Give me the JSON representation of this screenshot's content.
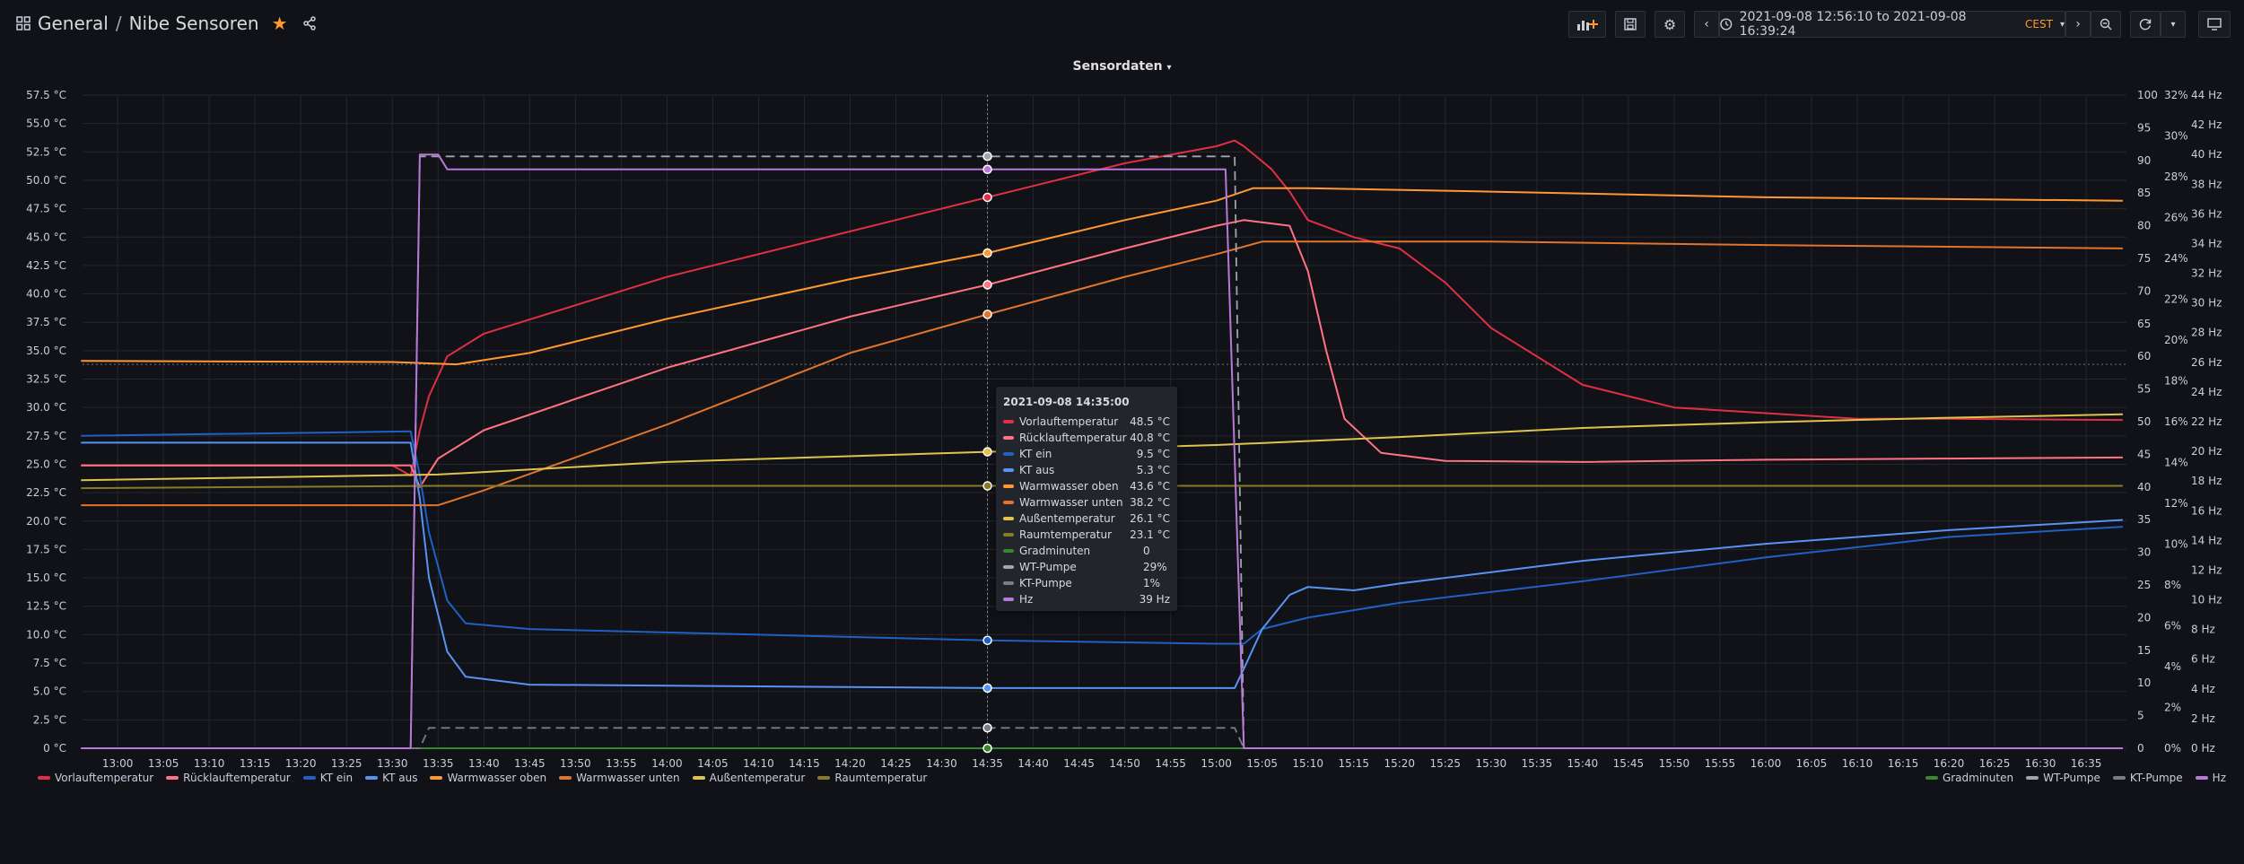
{
  "breadcrumb": {
    "folder": "General",
    "separator": "/",
    "dashboard": "Nibe Sensoren"
  },
  "toolbar": {
    "time_range": "2021-09-08 12:56:10 to 2021-09-08 16:39:24",
    "timezone": "CEST",
    "icons": [
      "add-panel-icon",
      "save-icon",
      "gear-icon",
      "chevron-left-icon",
      "clock-icon",
      "chevron-right-icon",
      "zoom-out-icon",
      "refresh-icon",
      "chevron-down-icon",
      "tv-icon"
    ]
  },
  "panel": {
    "title": "Sensordaten"
  },
  "tooltip": {
    "time": "2021-09-08 14:35:00",
    "rows": [
      {
        "name": "Vorlauftemperatur",
        "value": "48.5 °C",
        "color": "#e02f44"
      },
      {
        "name": "Rücklauftemperatur",
        "value": "40.8 °C",
        "color": "#ff7383"
      },
      {
        "name": "KT ein",
        "value": "9.5 °C",
        "color": "#1f60c4"
      },
      {
        "name": "KT aus",
        "value": "5.3 °C",
        "color": "#5794f2"
      },
      {
        "name": "Warmwasser oben",
        "value": "43.6 °C",
        "color": "#ff9830"
      },
      {
        "name": "Warmwasser unten",
        "value": "38.2 °C",
        "color": "#e0752d"
      },
      {
        "name": "Außentemperatur",
        "value": "26.1 °C",
        "color": "#e0c34d"
      },
      {
        "name": "Raumtemperatur",
        "value": "23.1 °C",
        "color": "#8a7a27"
      },
      {
        "name": "Gradminuten",
        "value": "0",
        "color": "#37872d"
      },
      {
        "name": "WT-Pumpe",
        "value": "29%",
        "color": "#a0a4ae"
      },
      {
        "name": "KT-Pumpe",
        "value": "1%",
        "color": "#7a7d84"
      },
      {
        "name": "Hz",
        "value": "39 Hz",
        "color": "#b877d9"
      }
    ]
  },
  "legend_left": [
    {
      "name": "Vorlauftemperatur",
      "color": "#e02f44"
    },
    {
      "name": "Rücklauftemperatur",
      "color": "#ff7383"
    },
    {
      "name": "KT ein",
      "color": "#1f60c4"
    },
    {
      "name": "KT aus",
      "color": "#5794f2"
    },
    {
      "name": "Warmwasser oben",
      "color": "#ff9830"
    },
    {
      "name": "Warmwasser unten",
      "color": "#e0752d"
    },
    {
      "name": "Außentemperatur",
      "color": "#e0c34d"
    },
    {
      "name": "Raumtemperatur",
      "color": "#8a7a27"
    }
  ],
  "legend_right": [
    {
      "name": "Gradminuten",
      "color": "#37872d"
    },
    {
      "name": "WT-Pumpe",
      "color": "#a0a4ae"
    },
    {
      "name": "KT-Pumpe",
      "color": "#7a7d84"
    },
    {
      "name": "Hz",
      "color": "#b877d9"
    }
  ],
  "chart_data": {
    "type": "line",
    "title": "Sensordaten",
    "x_ticks": [
      "13:00",
      "13:05",
      "13:10",
      "13:15",
      "13:20",
      "13:25",
      "13:30",
      "13:35",
      "13:40",
      "13:45",
      "13:50",
      "13:55",
      "14:00",
      "14:05",
      "14:10",
      "14:15",
      "14:20",
      "14:25",
      "14:30",
      "14:35",
      "14:40",
      "14:45",
      "14:50",
      "14:55",
      "15:00",
      "15:05",
      "15:10",
      "15:15",
      "15:20",
      "15:25",
      "15:30",
      "15:35",
      "15:40",
      "15:45",
      "15:50",
      "15:55",
      "16:00",
      "16:05",
      "16:10",
      "16:15",
      "16:20",
      "16:25",
      "16:30",
      "16:35"
    ],
    "x_range": [
      "12:56:10",
      "16:39:24"
    ],
    "y_axis_left": {
      "unit": "°C",
      "range": [
        0,
        57.5
      ],
      "ticks": [
        "0 °C",
        "2.5 °C",
        "5.0 °C",
        "7.5 °C",
        "10.0 °C",
        "12.5 °C",
        "15.0 °C",
        "17.5 °C",
        "20.0 °C",
        "22.5 °C",
        "25.0 °C",
        "27.5 °C",
        "30.0 °C",
        "32.5 °C",
        "35.0 °C",
        "37.5 °C",
        "40.0 °C",
        "42.5 °C",
        "45.0 °C",
        "47.5 °C",
        "50.0 °C",
        "52.5 °C",
        "55.0 °C",
        "57.5 °C"
      ]
    },
    "y_axis_right_1": {
      "range": [
        0,
        100
      ],
      "ticks": [
        "0",
        "5",
        "10",
        "15",
        "20",
        "25",
        "30",
        "35",
        "40",
        "45",
        "50",
        "55",
        "60",
        "65",
        "70",
        "75",
        "80",
        "85",
        "90",
        "95",
        "100"
      ]
    },
    "y_axis_right_2": {
      "unit": "%",
      "range": [
        0,
        32
      ],
      "ticks": [
        "0%",
        "2%",
        "4%",
        "6%",
        "8%",
        "10%",
        "12%",
        "14%",
        "16%",
        "18%",
        "20%",
        "22%",
        "24%",
        "26%",
        "28%",
        "30%",
        "32%"
      ]
    },
    "y_axis_right_3": {
      "unit": "Hz",
      "range": [
        0,
        44
      ],
      "ticks": [
        "0 Hz",
        "2 Hz",
        "4 Hz",
        "6 Hz",
        "8 Hz",
        "10 Hz",
        "12 Hz",
        "14 Hz",
        "16 Hz",
        "18 Hz",
        "20 Hz",
        "22 Hz",
        "24 Hz",
        "26 Hz",
        "28 Hz",
        "30 Hz",
        "32 Hz",
        "34 Hz",
        "36 Hz",
        "38 Hz",
        "40 Hz",
        "42 Hz",
        "44 Hz"
      ]
    },
    "series": [
      {
        "name": "Vorlauftemperatur",
        "axis": "left",
        "color": "#e02f44",
        "points": [
          [
            "12:56",
            24.9
          ],
          [
            "13:30",
            24.9
          ],
          [
            "13:32",
            24.0
          ],
          [
            "13:33",
            28
          ],
          [
            "13:34",
            31
          ],
          [
            "13:36",
            34.5
          ],
          [
            "13:40",
            36.5
          ],
          [
            "14:00",
            41.5
          ],
          [
            "14:20",
            45.5
          ],
          [
            "14:35",
            48.5
          ],
          [
            "14:50",
            51.5
          ],
          [
            "15:00",
            53.0
          ],
          [
            "15:02",
            53.5
          ],
          [
            "15:03",
            53.0
          ],
          [
            "15:06",
            51.0
          ],
          [
            "15:08",
            49.0
          ],
          [
            "15:10",
            46.5
          ],
          [
            "15:15",
            45.0
          ],
          [
            "15:20",
            44.0
          ],
          [
            "15:25",
            41.0
          ],
          [
            "15:30",
            37.0
          ],
          [
            "15:40",
            32.0
          ],
          [
            "15:50",
            30.0
          ],
          [
            "16:00",
            29.5
          ],
          [
            "16:10",
            29.0
          ],
          [
            "16:20",
            29.0
          ],
          [
            "16:39",
            28.9
          ]
        ]
      },
      {
        "name": "Rücklauftemperatur",
        "axis": "left",
        "color": "#ff7383",
        "points": [
          [
            "12:56",
            24.9
          ],
          [
            "13:32",
            24.9
          ],
          [
            "13:33",
            23.0
          ],
          [
            "13:35",
            25.5
          ],
          [
            "13:40",
            28.0
          ],
          [
            "14:00",
            33.5
          ],
          [
            "14:20",
            38.0
          ],
          [
            "14:35",
            40.8
          ],
          [
            "14:50",
            44.0
          ],
          [
            "15:00",
            46.0
          ],
          [
            "15:03",
            46.5
          ],
          [
            "15:08",
            46.0
          ],
          [
            "15:10",
            42.0
          ],
          [
            "15:12",
            35.0
          ],
          [
            "15:14",
            29.0
          ],
          [
            "15:18",
            26.0
          ],
          [
            "15:25",
            25.3
          ],
          [
            "15:40",
            25.2
          ],
          [
            "16:00",
            25.4
          ],
          [
            "16:20",
            25.5
          ],
          [
            "16:39",
            25.6
          ]
        ]
      },
      {
        "name": "KT ein",
        "axis": "left",
        "color": "#1f60c4",
        "points": [
          [
            "12:56",
            27.5
          ],
          [
            "13:32",
            27.9
          ],
          [
            "13:33",
            24.0
          ],
          [
            "13:34",
            19.0
          ],
          [
            "13:36",
            13.0
          ],
          [
            "13:38",
            11.0
          ],
          [
            "13:45",
            10.5
          ],
          [
            "14:10",
            10.0
          ],
          [
            "14:35",
            9.5
          ],
          [
            "15:00",
            9.2
          ],
          [
            "15:03",
            9.2
          ],
          [
            "15:05",
            10.5
          ],
          [
            "15:10",
            11.5
          ],
          [
            "15:20",
            12.8
          ],
          [
            "15:40",
            14.7
          ],
          [
            "16:00",
            16.8
          ],
          [
            "16:20",
            18.6
          ],
          [
            "16:39",
            19.5
          ]
        ]
      },
      {
        "name": "KT aus",
        "axis": "left",
        "color": "#5794f2",
        "points": [
          [
            "12:56",
            26.9
          ],
          [
            "13:32",
            26.9
          ],
          [
            "13:33",
            22.0
          ],
          [
            "13:34",
            15.0
          ],
          [
            "13:36",
            8.5
          ],
          [
            "13:38",
            6.3
          ],
          [
            "13:45",
            5.6
          ],
          [
            "14:35",
            5.3
          ],
          [
            "15:02",
            5.3
          ],
          [
            "15:03",
            7.0
          ],
          [
            "15:05",
            10.5
          ],
          [
            "15:08",
            13.5
          ],
          [
            "15:10",
            14.2
          ],
          [
            "15:15",
            13.9
          ],
          [
            "15:20",
            14.5
          ],
          [
            "15:40",
            16.5
          ],
          [
            "16:00",
            18.0
          ],
          [
            "16:20",
            19.2
          ],
          [
            "16:39",
            20.1
          ]
        ]
      },
      {
        "name": "Warmwasser oben",
        "axis": "left",
        "color": "#ff9830",
        "points": [
          [
            "12:56",
            34.1
          ],
          [
            "13:30",
            34.0
          ],
          [
            "13:37",
            33.8
          ],
          [
            "13:45",
            34.8
          ],
          [
            "14:00",
            37.8
          ],
          [
            "14:20",
            41.3
          ],
          [
            "14:35",
            43.6
          ],
          [
            "14:50",
            46.5
          ],
          [
            "15:00",
            48.2
          ],
          [
            "15:04",
            49.3
          ],
          [
            "15:10",
            49.3
          ],
          [
            "15:30",
            49.0
          ],
          [
            "16:00",
            48.5
          ],
          [
            "16:39",
            48.2
          ]
        ]
      },
      {
        "name": "Warmwasser unten",
        "axis": "left",
        "color": "#e0752d",
        "points": [
          [
            "12:56",
            21.4
          ],
          [
            "13:35",
            21.4
          ],
          [
            "13:40",
            22.7
          ],
          [
            "14:00",
            28.5
          ],
          [
            "14:20",
            34.8
          ],
          [
            "14:35",
            38.2
          ],
          [
            "14:50",
            41.5
          ],
          [
            "15:00",
            43.5
          ],
          [
            "15:05",
            44.6
          ],
          [
            "15:30",
            44.6
          ],
          [
            "16:00",
            44.3
          ],
          [
            "16:39",
            44.0
          ]
        ]
      },
      {
        "name": "Außentemperatur",
        "axis": "left",
        "color": "#e0c34d",
        "points": [
          [
            "12:56",
            23.6
          ],
          [
            "13:35",
            24.1
          ],
          [
            "14:00",
            25.2
          ],
          [
            "14:35",
            26.1
          ],
          [
            "15:00",
            26.7
          ],
          [
            "15:20",
            27.4
          ],
          [
            "15:40",
            28.2
          ],
          [
            "16:00",
            28.7
          ],
          [
            "16:20",
            29.1
          ],
          [
            "16:39",
            29.4
          ]
        ]
      },
      {
        "name": "Raumtemperatur",
        "axis": "left",
        "color": "#8a7a27",
        "points": [
          [
            "12:56",
            22.9
          ],
          [
            "13:35",
            23.1
          ],
          [
            "14:35",
            23.1
          ],
          [
            "15:30",
            23.1
          ],
          [
            "16:39",
            23.1
          ]
        ]
      },
      {
        "name": "Gradminuten",
        "axis": "right_1",
        "color": "#37872d",
        "points": [
          [
            "12:56",
            0
          ],
          [
            "16:39",
            0
          ]
        ]
      },
      {
        "name": "WT-Pumpe",
        "axis": "right_2",
        "color": "#a0a4ae",
        "points": [
          [
            "12:56",
            0
          ],
          [
            "13:32",
            0
          ],
          [
            "13:33",
            29
          ],
          [
            "14:35",
            29
          ],
          [
            "15:02",
            29
          ],
          [
            "15:03",
            0
          ],
          [
            "16:39",
            0
          ]
        ]
      },
      {
        "name": "KT-Pumpe",
        "axis": "right_2",
        "color": "#7a7d84",
        "points": [
          [
            "12:56",
            0
          ],
          [
            "13:33",
            0
          ],
          [
            "13:34",
            1
          ],
          [
            "14:35",
            1
          ],
          [
            "15:02",
            1
          ],
          [
            "15:03",
            0
          ],
          [
            "16:39",
            0
          ]
        ]
      },
      {
        "name": "Hz",
        "axis": "right_3",
        "color": "#b877d9",
        "points": [
          [
            "12:56",
            0
          ],
          [
            "13:32",
            0
          ],
          [
            "13:33",
            40
          ],
          [
            "13:35",
            40
          ],
          [
            "13:36",
            39
          ],
          [
            "14:35",
            39
          ],
          [
            "15:01",
            39
          ],
          [
            "15:03",
            0
          ],
          [
            "16:39",
            0
          ]
        ]
      }
    ],
    "crosshair_time": "14:35",
    "threshold_left": 33.8
  }
}
